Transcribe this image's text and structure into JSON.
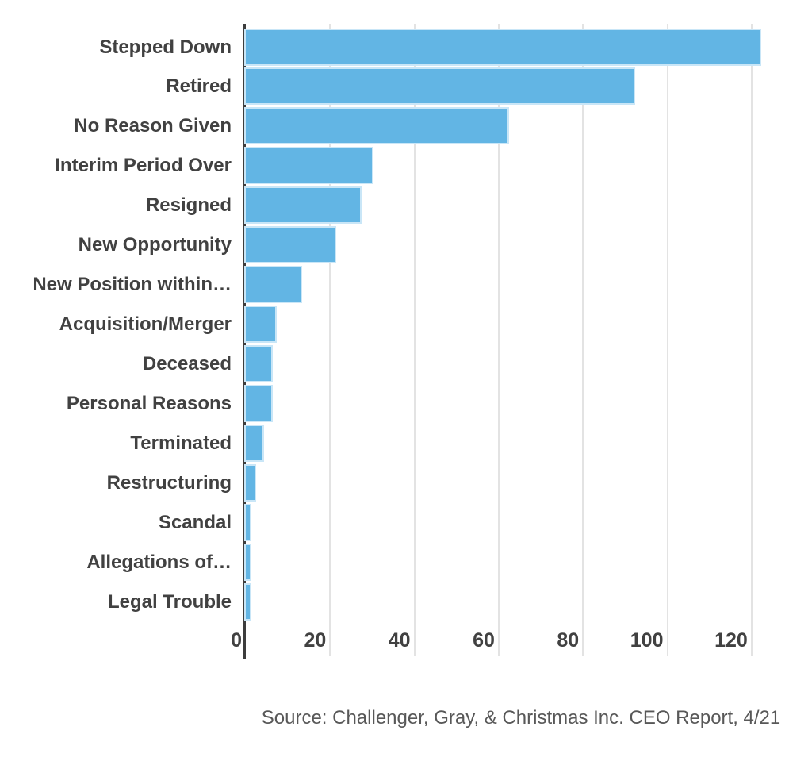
{
  "chart_data": {
    "type": "bar",
    "orientation": "horizontal",
    "categories": [
      "Stepped Down",
      "Retired",
      "No Reason Given",
      "Interim Period Over",
      "Resigned",
      "New Opportunity",
      "New Position within…",
      "Acquisition/Merger",
      "Deceased",
      "Personal Reasons",
      "Terminated",
      "Restructuring",
      "Scandal",
      "Allegations of…",
      "Legal Trouble"
    ],
    "values": [
      122,
      92,
      62,
      30,
      27,
      21,
      13,
      7,
      6,
      6,
      4,
      2,
      1,
      1,
      1
    ],
    "x_ticks": [
      0,
      20,
      40,
      60,
      80,
      100,
      120
    ],
    "xlim": [
      0,
      132
    ],
    "grid": true,
    "legend": "none",
    "source": "Source: Challenger, Gray, & Christmas Inc. CEO Report, 4/21",
    "colors": {
      "bar_fill": "#62b5e4",
      "bar_stroke": "#c9e6f7",
      "axis_line": "#3d3d3d",
      "gridline": "#e3e3e3",
      "label_text": "#414141",
      "source_text": "#585858"
    }
  }
}
